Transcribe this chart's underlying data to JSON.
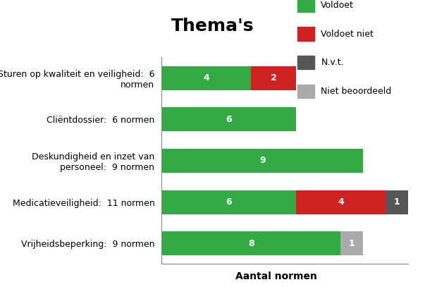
{
  "title": "Thema's",
  "xlabel": "Aantal normen",
  "categories": [
    "Vrijheidsbeperking:  9 normen",
    "Medicatieveiligheid:  11 normen",
    "Deskundigheid en inzet van\npersoneel:  9 normen",
    "Cliëntdossier:  6 normen",
    "Sturen op kwaliteit en veiligheid:  6\nnormen"
  ],
  "series": {
    "Voldoet": [
      8,
      6,
      9,
      6,
      4
    ],
    "Voldoet niet": [
      0,
      4,
      0,
      0,
      2
    ],
    "N.v.t.": [
      0,
      1,
      0,
      0,
      0
    ],
    "Niet beoordeeld": [
      1,
      0,
      0,
      0,
      0
    ]
  },
  "colors": {
    "Voldoet": "#33aa44",
    "Voldoet niet": "#cc2222",
    "N.v.t.": "#555555",
    "Niet beoordeeld": "#aaaaaa"
  },
  "xlim": [
    0,
    11
  ],
  "bar_height": 0.58,
  "background_color": "#ffffff",
  "title_fontsize": 18,
  "label_fontsize": 10,
  "tick_fontsize": 9,
  "legend_fontsize": 9,
  "bar_label_fontsize": 9,
  "bar_label_color": "#ffffff"
}
